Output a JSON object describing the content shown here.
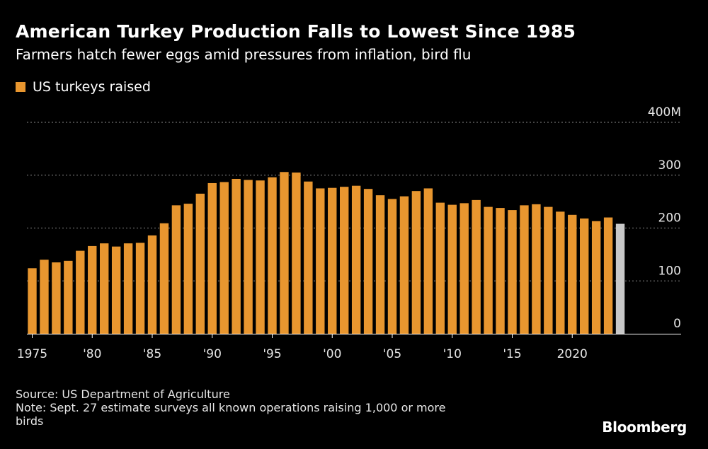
{
  "chart_data": {
    "type": "bar",
    "title": "American Turkey Production Falls to Lowest Since 1985",
    "subtitle": "Farmers hatch fewer eggs amid pressures from inflation, bird flu",
    "legend": [
      "US turkeys raised"
    ],
    "series": [
      {
        "name": "US turkeys raised",
        "x": [
          1975,
          1976,
          1977,
          1978,
          1979,
          1980,
          1981,
          1982,
          1983,
          1984,
          1985,
          1986,
          1987,
          1988,
          1989,
          1990,
          1991,
          1992,
          1993,
          1994,
          1995,
          1996,
          1997,
          1998,
          1999,
          2000,
          2001,
          2002,
          2003,
          2004,
          2005,
          2006,
          2007,
          2008,
          2009,
          2010,
          2011,
          2012,
          2013,
          2014,
          2015,
          2016,
          2017,
          2018,
          2019,
          2020,
          2021,
          2022,
          2023
        ],
        "values": [
          124,
          140,
          135,
          138,
          157,
          166,
          171,
          165,
          171,
          172,
          186,
          209,
          243,
          246,
          265,
          285,
          287,
          293,
          291,
          290,
          296,
          306,
          305,
          288,
          275,
          276,
          278,
          280,
          274,
          262,
          255,
          260,
          270,
          275,
          248,
          244,
          247,
          253,
          240,
          238,
          234,
          243,
          245,
          240,
          231,
          225,
          218,
          213,
          220
        ]
      }
    ],
    "highlight": {
      "x": 2024,
      "value": 208,
      "color": "#c8c8c8"
    },
    "y_ticks": [
      "0",
      "100",
      "200",
      "300",
      "400M"
    ],
    "x_tick_labels": [
      "1975",
      "'80",
      "'85",
      "'90",
      "'95",
      "'00",
      "'05",
      "'10",
      "'15",
      "2020"
    ],
    "ylim": [
      0,
      400
    ],
    "grid": true,
    "y_axis_side": "right",
    "legend_position": "top-left",
    "colors": {
      "bar": "#e8962f",
      "highlight": "#c8c8c8",
      "grid": "#8a8a8a",
      "background": "#000000"
    }
  },
  "footer": {
    "source": "Source: US Department of Agriculture",
    "note_line1": "Note: Sept. 27 estimate surveys all known operations raising 1,000 or more",
    "note_line2": "birds"
  },
  "brand": "Bloomberg"
}
